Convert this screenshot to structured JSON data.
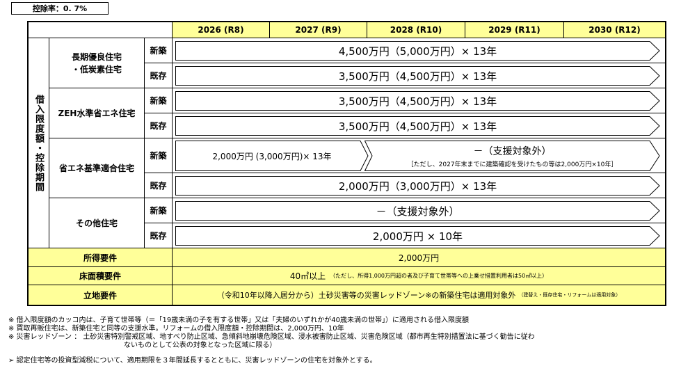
{
  "rate_label": "控除率：0. 7%",
  "years": [
    "2026 (R8)",
    "2027 (R9)",
    "2028 (R10)",
    "2029 (R11)",
    "2030 (R12)"
  ],
  "left_header": "借入限度額・控除期間",
  "categories": {
    "long_term": "長期優良住宅\n・低炭素住宅",
    "zeh": "ZEH水準省エネ住宅",
    "energy": "省エネ基準適合住宅",
    "other": "その他住宅"
  },
  "new_label": "新築",
  "existing_label": "既存",
  "rows": {
    "long_new": "4,500万円（5,000万円）× 13年",
    "long_existing": "3,500万円（4,500万円）× 13年",
    "zeh_new": "3,500万円（4,500万円）× 13年",
    "zeh_existing": "3,500万円（4,500万円）× 13年",
    "energy_new_a": "2,000万円 (3,000万円)× 13年",
    "energy_new_b_title": "－（支援対象外）",
    "energy_new_b_note": "［ただし、2027年末までに建築確認を受けたもの等は2,000万円×10年］",
    "energy_existing": "2,000万円（3,000万円）× 13年",
    "other_new": "－（支援対象外）",
    "other_existing": "2,000万円 × 10年"
  },
  "requirements": {
    "income_label": "所得要件",
    "income_value": "2,000万円",
    "floor_label": "床面積要件",
    "floor_value": "40㎡以上",
    "floor_note": "（ただし、所得1,000万円超の者及び子育て世帯等への上乗せ措置利用者は50㎡以上）",
    "location_label": "立地要件",
    "location_value": "（令和10年以降入居分から）土砂災害等の災害レッドゾーン※の新築住宅は適用対象外",
    "location_note": "（建替え・既存住宅・リフォームは適用対象）"
  },
  "notes": [
    "※ 借入限度額のカッコ内は、子育て世帯等（＝「19歳未満の子を有する世帯」又は「夫婦のいずれかが40歳未満の世帯」）に適用される借入限度額",
    "※ 買取再販住宅は、新築住宅と同等の支援水準。リフォームの借入限度額・控除期間は、2,000万円、10年",
    "※ 災害レッドゾーン ： 土砂災害特別警戒区域、地すべり防止区域、急傾斜地崩壊危険区域、浸水被害防止区域、災害危険区域（都市再生特別措置法に基づく勧告に従わ",
    "ないものとして公表の対象となった区域に限る）",
    "➢ 認定住宅等の投資型減税について、適用期限を３年間延長するとともに、災害レッドゾーンの住宅を対象外とする。"
  ]
}
